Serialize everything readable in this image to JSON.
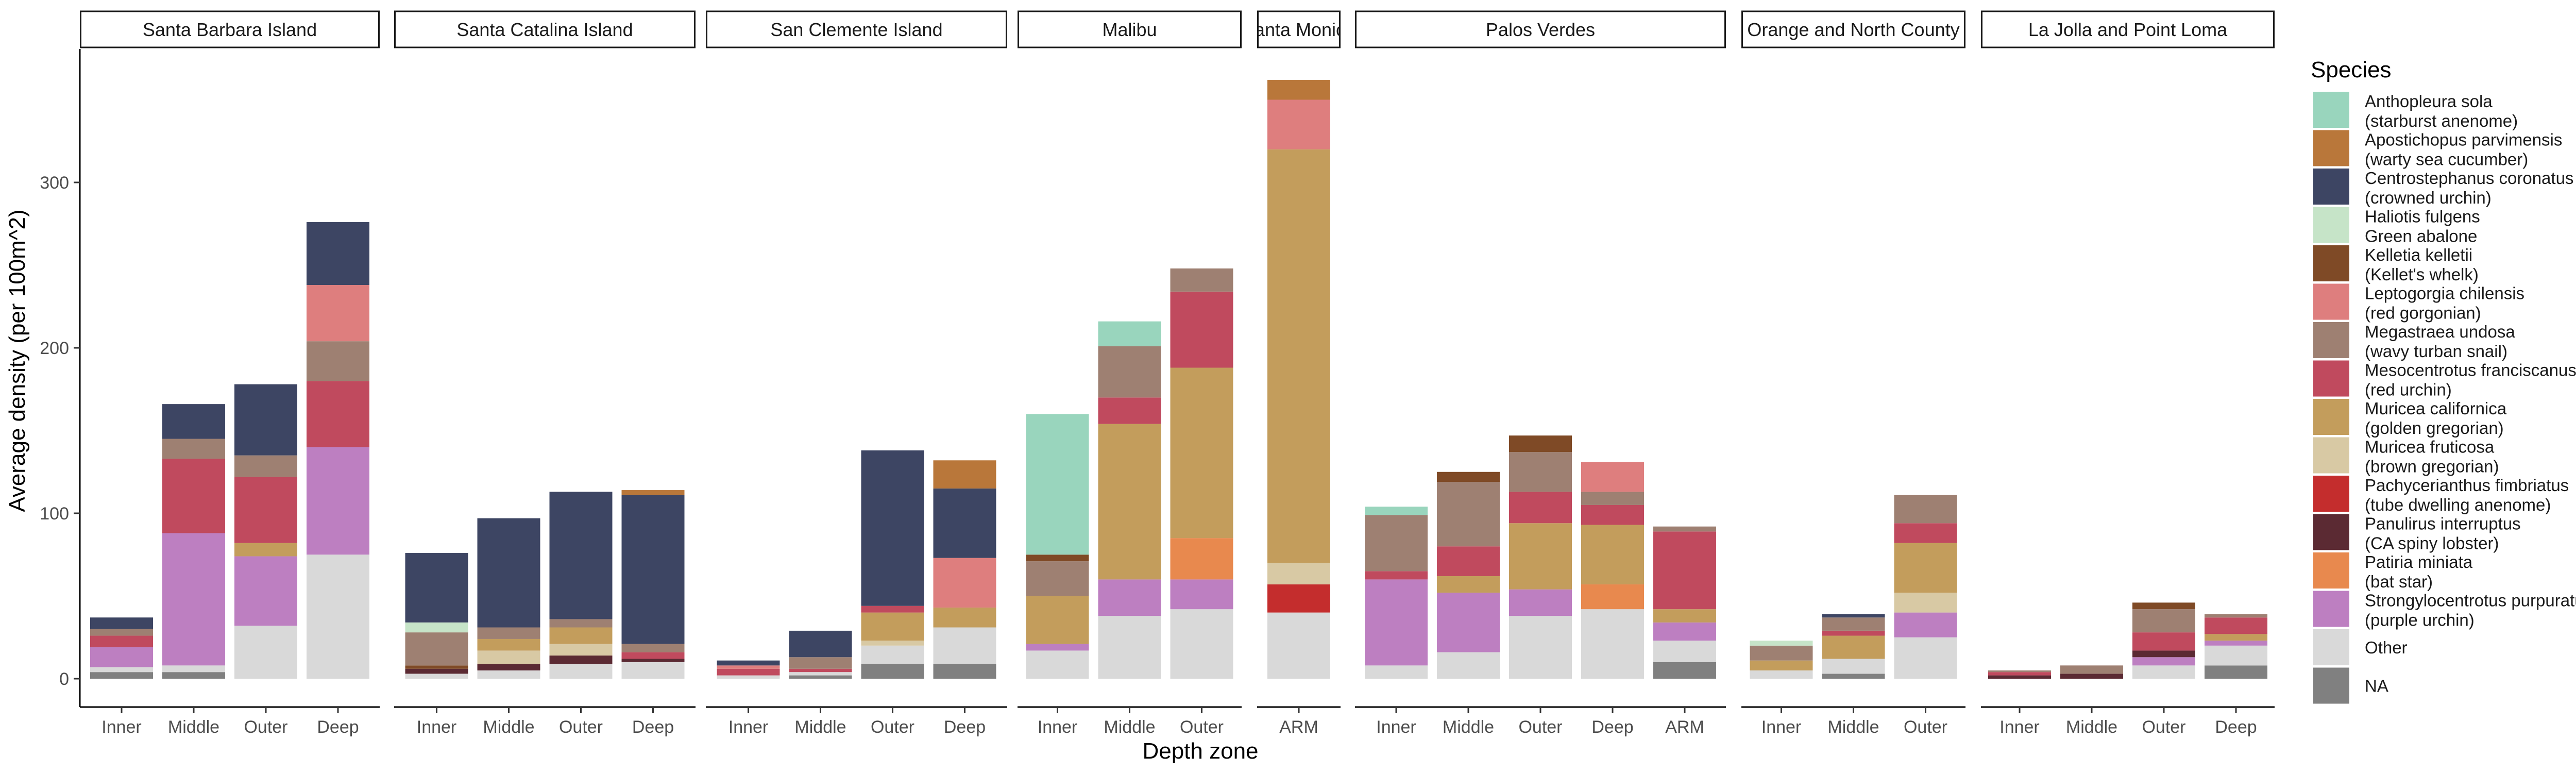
{
  "chart_data": {
    "type": "bar",
    "stacked": true,
    "xlabel": "Depth zone",
    "ylabel": "Average density (per 100m^2)",
    "ylim": [
      0,
      380
    ],
    "yticks": [
      0,
      100,
      200,
      300
    ],
    "legend": {
      "title": "Species",
      "position": "right",
      "entries": [
        {
          "key": "anth",
          "line1": "Anthopleura sola",
          "line2": "(starburst anenome)",
          "color": "#99D5BD"
        },
        {
          "key": "apos",
          "line1": "Apostichopus parvimensis",
          "line2": "(warty sea cucumber)",
          "color": "#B9773A"
        },
        {
          "key": "cent",
          "line1": "Centrostephanus coronatus",
          "line2": "(crowned urchin)",
          "color": "#3D4563"
        },
        {
          "key": "hali",
          "line1": "Haliotis fulgens",
          "line2": "Green abalone",
          "color": "#C6E4C8"
        },
        {
          "key": "kell",
          "line1": "Kelletia kelletii",
          "line2": "(Kellet's whelk)",
          "color": "#7F4A26"
        },
        {
          "key": "lept",
          "line1": "Leptogorgia chilensis",
          "line2": "(red gorgonian)",
          "color": "#DE7E7E"
        },
        {
          "key": "mega",
          "line1": "Megastraea undosa",
          "line2": "(wavy turban snail)",
          "color": "#9E8072"
        },
        {
          "key": "meso",
          "line1": "Mesocentrotus franciscanus",
          "line2": "(red urchin)",
          "color": "#C04A5E"
        },
        {
          "key": "muca",
          "line1": "Muricea californica",
          "line2": "(golden gregorian)",
          "color": "#C39D5C"
        },
        {
          "key": "mufr",
          "line1": "Muricea fruticosa",
          "line2": "(brown gregorian)",
          "color": "#D8C9A4"
        },
        {
          "key": "pach",
          "line1": "Pachycerianthus fimbriatus",
          "line2": "(tube dwelling anenome)",
          "color": "#C42D2D"
        },
        {
          "key": "panu",
          "line1": "Panulirus interruptus",
          "line2": "(CA spiny lobster)",
          "color": "#5B2A33"
        },
        {
          "key": "pati",
          "line1": "Patiria miniata",
          "line2": "(bat star)",
          "color": "#E8894E"
        },
        {
          "key": "stro",
          "line1": "Strongylocentrotus purpuratus",
          "line2": "(purple urchin)",
          "color": "#BD7FC1"
        },
        {
          "key": "other",
          "line1": "Other",
          "line2": "",
          "color": "#D9D9D9"
        },
        {
          "key": "na",
          "line1": "NA",
          "line2": "",
          "color": "#808080"
        }
      ]
    },
    "facets": [
      {
        "title": "Santa Barbara Island",
        "zones": [
          {
            "zone": "Inner",
            "segments": [
              [
                "na",
                4
              ],
              [
                "other",
                3
              ],
              [
                "stro",
                12
              ],
              [
                "meso",
                7
              ],
              [
                "mega",
                4
              ],
              [
                "cent",
                7
              ]
            ]
          },
          {
            "zone": "Middle",
            "segments": [
              [
                "na",
                4
              ],
              [
                "other",
                4
              ],
              [
                "stro",
                80
              ],
              [
                "meso",
                45
              ],
              [
                "mega",
                12
              ],
              [
                "cent",
                21
              ]
            ]
          },
          {
            "zone": "Outer",
            "segments": [
              [
                "other",
                32
              ],
              [
                "stro",
                42
              ],
              [
                "muca",
                8
              ],
              [
                "meso",
                40
              ],
              [
                "mega",
                13
              ],
              [
                "cent",
                43
              ]
            ]
          },
          {
            "zone": "Deep",
            "segments": [
              [
                "other",
                75
              ],
              [
                "stro",
                65
              ],
              [
                "meso",
                40
              ],
              [
                "mega",
                24
              ],
              [
                "lept",
                34
              ],
              [
                "cent",
                38
              ]
            ]
          }
        ]
      },
      {
        "title": "Santa Catalina Island",
        "zones": [
          {
            "zone": "Inner",
            "segments": [
              [
                "other",
                3
              ],
              [
                "panu",
                3
              ],
              [
                "kell",
                2
              ],
              [
                "mega",
                20
              ],
              [
                "hali",
                6
              ],
              [
                "cent",
                42
              ]
            ]
          },
          {
            "zone": "Middle",
            "segments": [
              [
                "other",
                5
              ],
              [
                "panu",
                4
              ],
              [
                "mufr",
                8
              ],
              [
                "muca",
                7
              ],
              [
                "mega",
                7
              ],
              [
                "cent",
                66
              ]
            ]
          },
          {
            "zone": "Outer",
            "segments": [
              [
                "other",
                9
              ],
              [
                "panu",
                5
              ],
              [
                "mufr",
                7
              ],
              [
                "muca",
                10
              ],
              [
                "mega",
                5
              ],
              [
                "cent",
                77
              ]
            ]
          },
          {
            "zone": "Deep",
            "segments": [
              [
                "other",
                10
              ],
              [
                "panu",
                2
              ],
              [
                "meso",
                4
              ],
              [
                "mega",
                5
              ],
              [
                "cent",
                90
              ],
              [
                "apos",
                3
              ]
            ]
          }
        ]
      },
      {
        "title": "San Clemente Island",
        "zones": [
          {
            "zone": "Inner",
            "segments": [
              [
                "other",
                2
              ],
              [
                "meso",
                4
              ],
              [
                "lept",
                2
              ],
              [
                "cent",
                3
              ]
            ]
          },
          {
            "zone": "Middle",
            "segments": [
              [
                "na",
                2
              ],
              [
                "other",
                2
              ],
              [
                "meso",
                2
              ],
              [
                "mega",
                7
              ],
              [
                "cent",
                16
              ]
            ]
          },
          {
            "zone": "Outer",
            "segments": [
              [
                "na",
                9
              ],
              [
                "other",
                11
              ],
              [
                "mufr",
                3
              ],
              [
                "muca",
                17
              ],
              [
                "meso",
                4
              ],
              [
                "cent",
                94
              ]
            ]
          },
          {
            "zone": "Deep",
            "segments": [
              [
                "na",
                9
              ],
              [
                "other",
                22
              ],
              [
                "muca",
                12
              ],
              [
                "lept",
                30
              ],
              [
                "cent",
                42
              ],
              [
                "apos",
                17
              ]
            ]
          }
        ]
      },
      {
        "title": "Malibu",
        "zones": [
          {
            "zone": "Inner",
            "segments": [
              [
                "other",
                17
              ],
              [
                "stro",
                4
              ],
              [
                "muca",
                29
              ],
              [
                "mega",
                21
              ],
              [
                "kell",
                4
              ],
              [
                "anth",
                85
              ]
            ]
          },
          {
            "zone": "Middle",
            "segments": [
              [
                "other",
                38
              ],
              [
                "stro",
                22
              ],
              [
                "muca",
                94
              ],
              [
                "meso",
                16
              ],
              [
                "mega",
                31
              ],
              [
                "anth",
                15
              ]
            ]
          },
          {
            "zone": "Outer",
            "segments": [
              [
                "other",
                42
              ],
              [
                "stro",
                18
              ],
              [
                "pati",
                25
              ],
              [
                "muca",
                103
              ],
              [
                "meso",
                46
              ],
              [
                "mega",
                14
              ]
            ]
          }
        ]
      },
      {
        "title": "Santa Monica",
        "zones": [
          {
            "zone": "ARM",
            "segments": [
              [
                "other",
                40
              ],
              [
                "pach",
                17
              ],
              [
                "mufr",
                13
              ],
              [
                "muca",
                250
              ],
              [
                "lept",
                30
              ],
              [
                "apos",
                12
              ]
            ]
          }
        ]
      },
      {
        "title": "Palos Verdes",
        "zones": [
          {
            "zone": "Inner",
            "segments": [
              [
                "other",
                8
              ],
              [
                "stro",
                52
              ],
              [
                "meso",
                5
              ],
              [
                "mega",
                34
              ],
              [
                "anth",
                5
              ]
            ]
          },
          {
            "zone": "Middle",
            "segments": [
              [
                "other",
                16
              ],
              [
                "stro",
                36
              ],
              [
                "muca",
                10
              ],
              [
                "meso",
                18
              ],
              [
                "mega",
                39
              ],
              [
                "kell",
                6
              ]
            ]
          },
          {
            "zone": "Outer",
            "segments": [
              [
                "other",
                38
              ],
              [
                "stro",
                16
              ],
              [
                "muca",
                40
              ],
              [
                "meso",
                19
              ],
              [
                "mega",
                24
              ],
              [
                "kell",
                10
              ]
            ]
          },
          {
            "zone": "Deep",
            "segments": [
              [
                "other",
                42
              ],
              [
                "pati",
                15
              ],
              [
                "muca",
                36
              ],
              [
                "meso",
                12
              ],
              [
                "mega",
                8
              ],
              [
                "lept",
                18
              ]
            ]
          },
          {
            "zone": "ARM",
            "segments": [
              [
                "na",
                10
              ],
              [
                "other",
                13
              ],
              [
                "stro",
                11
              ],
              [
                "muca",
                8
              ],
              [
                "meso",
                47
              ],
              [
                "mega",
                3
              ]
            ]
          }
        ]
      },
      {
        "title": "Orange and North County",
        "zones": [
          {
            "zone": "Inner",
            "segments": [
              [
                "other",
                5
              ],
              [
                "muca",
                6
              ],
              [
                "mega",
                9
              ],
              [
                "hali",
                3
              ]
            ]
          },
          {
            "zone": "Middle",
            "segments": [
              [
                "na",
                3
              ],
              [
                "other",
                9
              ],
              [
                "muca",
                14
              ],
              [
                "meso",
                3
              ],
              [
                "mega",
                8
              ],
              [
                "cent",
                2
              ]
            ]
          },
          {
            "zone": "Outer",
            "segments": [
              [
                "other",
                25
              ],
              [
                "stro",
                15
              ],
              [
                "mufr",
                12
              ],
              [
                "muca",
                30
              ],
              [
                "meso",
                12
              ],
              [
                "mega",
                17
              ]
            ]
          }
        ]
      },
      {
        "title": "La Jolla and Point Loma",
        "zones": [
          {
            "zone": "Inner",
            "segments": [
              [
                "panu",
                2
              ],
              [
                "meso",
                2
              ],
              [
                "mega",
                1
              ]
            ]
          },
          {
            "zone": "Middle",
            "segments": [
              [
                "panu",
                3
              ],
              [
                "mega",
                5
              ]
            ]
          },
          {
            "zone": "Outer",
            "segments": [
              [
                "other",
                8
              ],
              [
                "stro",
                5
              ],
              [
                "panu",
                4
              ],
              [
                "meso",
                11
              ],
              [
                "mega",
                14
              ],
              [
                "kell",
                4
              ]
            ]
          },
          {
            "zone": "Deep",
            "segments": [
              [
                "na",
                8
              ],
              [
                "other",
                12
              ],
              [
                "stro",
                3
              ],
              [
                "muca",
                4
              ],
              [
                "meso",
                10
              ],
              [
                "mega",
                2
              ]
            ]
          }
        ]
      }
    ]
  }
}
